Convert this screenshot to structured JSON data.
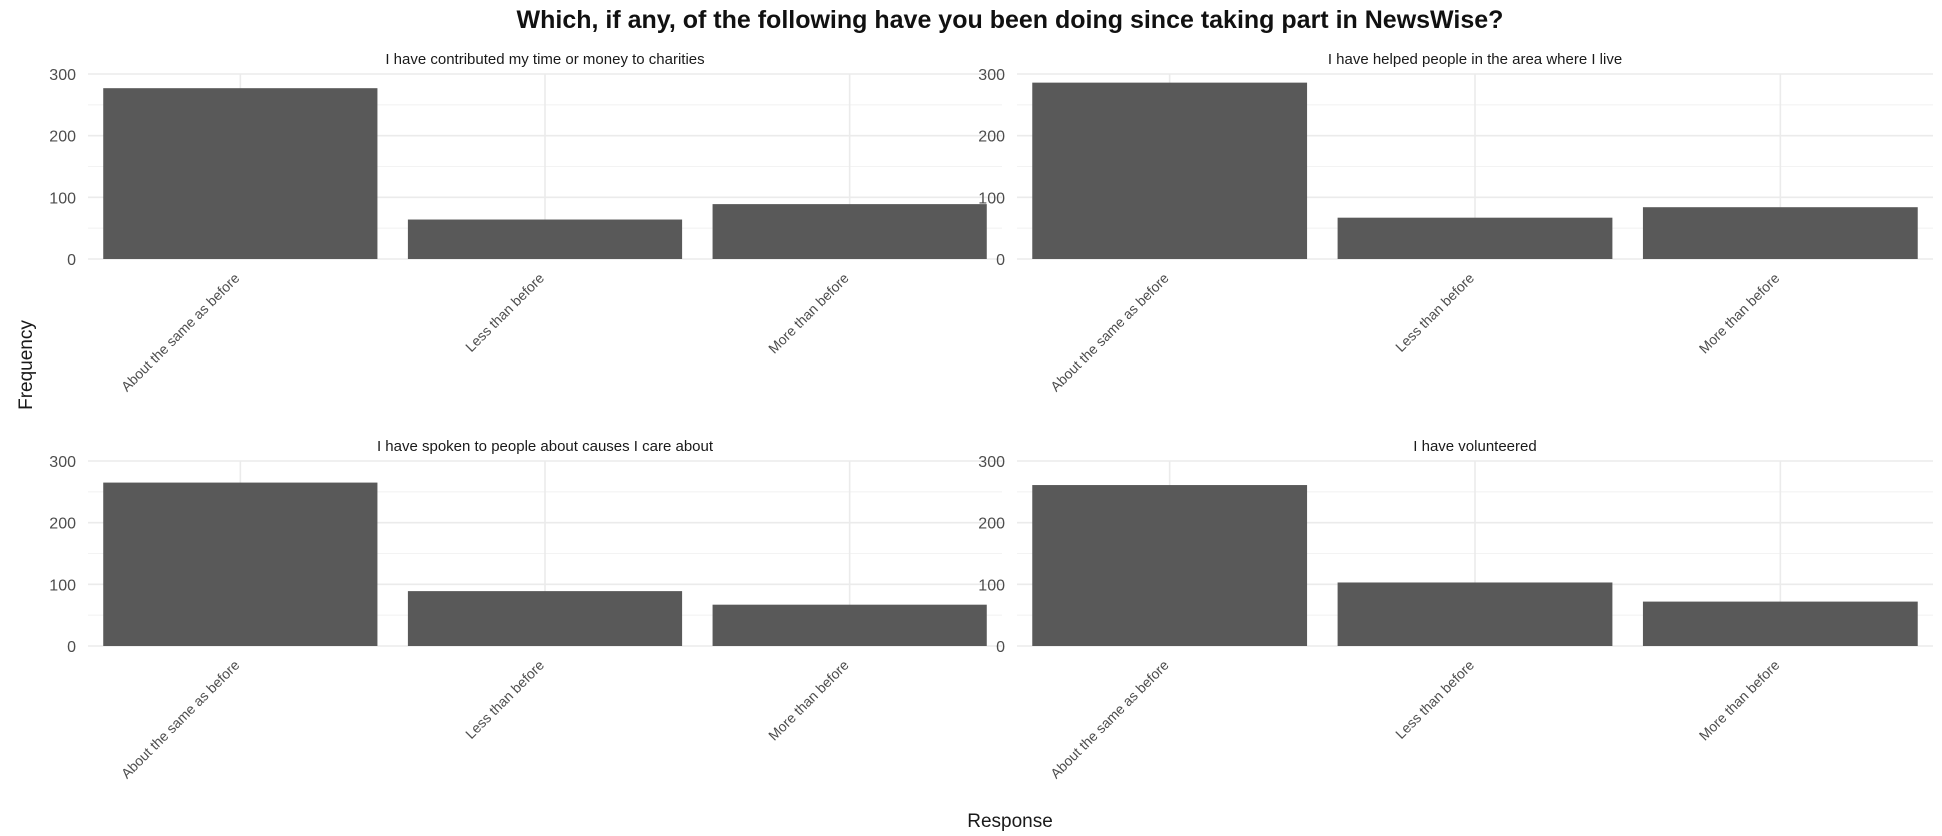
{
  "chart_data": {
    "type": "bar",
    "title": "Which, if any, of the following have you been doing since taking part in NewsWise?",
    "xlabel": "Response",
    "ylabel": "Frequency",
    "ylim": [
      0,
      300
    ],
    "yticks": [
      0,
      100,
      200,
      300
    ],
    "grid": true,
    "bar_color": "#595959",
    "categories": [
      "About the same as before",
      "Less than before",
      "More than before"
    ],
    "facets": [
      {
        "title": "I have contributed my time or money to charities",
        "values": [
          277,
          64,
          89
        ]
      },
      {
        "title": "I have helped people in the area where I live",
        "values": [
          286,
          67,
          84
        ]
      },
      {
        "title": "I have spoken to people about causes I care about",
        "values": [
          265,
          89,
          67
        ]
      },
      {
        "title": "I have volunteered",
        "values": [
          261,
          103,
          72
        ]
      }
    ]
  }
}
